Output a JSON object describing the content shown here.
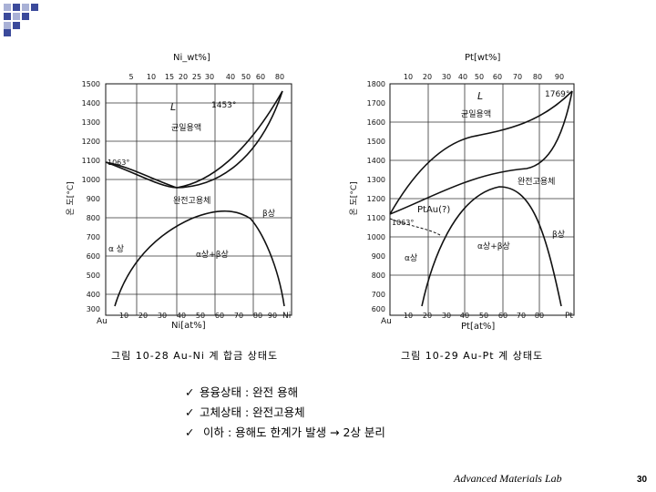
{
  "left_diagram": {
    "top_axis_label": "Ni_wt%]",
    "top_ticks": [
      "5",
      "10",
      "15",
      "20",
      "25",
      "30",
      "40",
      "50",
      "60",
      "80"
    ],
    "y_ticks": [
      "1500",
      "1400",
      "1300",
      "1200",
      "1100",
      "1000",
      "900",
      "800",
      "700",
      "600",
      "500",
      "400",
      "300"
    ],
    "y_axis_label": "온 도[°C]",
    "x_ticks": [
      "10",
      "20",
      "30",
      "40",
      "50",
      "60",
      "70",
      "80",
      "90"
    ],
    "x_left_element": "Au",
    "x_right_element": "Ni",
    "bottom_axis_label": "Ni[at%]",
    "labels": {
      "liquid": "L",
      "liquid_desc": "균일용액",
      "melt_au": "1063°",
      "melt_ni": "1453°",
      "solid_solution": "완전고용체",
      "beta": "β상",
      "alpha": "α 상",
      "two_phase": "α상+β상"
    },
    "caption": "그림 10-28  Au-Ni 계 합금 상태도"
  },
  "right_diagram": {
    "top_axis_label": "Pt[wt%]",
    "top_ticks": [
      "10",
      "20",
      "30",
      "40",
      "50",
      "60",
      "70",
      "80",
      "90"
    ],
    "y_ticks": [
      "1800",
      "1700",
      "1600",
      "1500",
      "1400",
      "1300",
      "1200",
      "1100",
      "1000",
      "900",
      "800",
      "700",
      "600"
    ],
    "y_axis_label": "온 도[°C]",
    "x_ticks": [
      "10",
      "20",
      "30",
      "40",
      "50",
      "60",
      "70",
      "80"
    ],
    "x_left_element": "Au",
    "x_right_element": "Pt",
    "bottom_axis_label": "Pt[at%]",
    "labels": {
      "liquid": "L",
      "liquid_desc": "균일용액",
      "melt_pt": "1769°",
      "melt_au": "1063°",
      "solid_solution": "완전고용체",
      "ptau": "PtAu(?)",
      "alpha": "α상",
      "two_phase": "α상+β상",
      "beta": "β상"
    },
    "caption": "그림 10-29  Au-Pt 계 상태도"
  },
  "bullets": [
    "용융상태 : 완전 용해",
    "고체상태 : 완전고용체",
    " 이하 : 용해도 한계가 발생 → 2상 분리"
  ],
  "footer": {
    "lab": "Advanced Materials Lab",
    "page": "30"
  },
  "colors": {
    "corner_blue": "#3b4a9b",
    "corner_light": "#a9b1d6",
    "ink": "#111111"
  }
}
